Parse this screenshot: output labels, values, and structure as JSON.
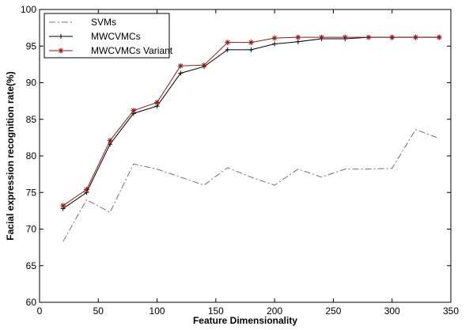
{
  "chart_data": {
    "type": "line",
    "title": "",
    "xlabel": "Feature Dimensionality",
    "ylabel": "Facial expression recognition rate(%)",
    "xlim": [
      0,
      350
    ],
    "ylim": [
      60,
      100
    ],
    "xticks": [
      0,
      50,
      100,
      150,
      200,
      250,
      300,
      350
    ],
    "yticks": [
      60,
      65,
      70,
      75,
      80,
      85,
      90,
      95,
      100
    ],
    "xtick_labels": [
      "0",
      "50",
      "100",
      "150",
      "200",
      "250",
      "300",
      "350"
    ],
    "ytick_labels": [
      "60",
      "65",
      "70",
      "75",
      "80",
      "85",
      "90",
      "95",
      "100"
    ],
    "grid": false,
    "legend_position": "top-left",
    "x": [
      20,
      40,
      60,
      80,
      100,
      120,
      140,
      160,
      180,
      200,
      220,
      240,
      260,
      280,
      300,
      320,
      340
    ],
    "series": [
      {
        "name": "SVMs",
        "style": "dash-dot",
        "marker": "none",
        "color": "#707070",
        "values": [
          68.3,
          74.0,
          72.3,
          78.9,
          78.2,
          77.1,
          76.0,
          78.4,
          77.1,
          76.0,
          78.2,
          77.1,
          78.2,
          78.2,
          78.3,
          83.6,
          82.4
        ]
      },
      {
        "name": "MWCVMCs",
        "style": "solid",
        "marker": "plus",
        "color": "#000000",
        "values": [
          72.8,
          75.0,
          81.6,
          85.8,
          86.8,
          91.3,
          92.2,
          94.5,
          94.5,
          95.3,
          95.6,
          96.0,
          96.0,
          96.2,
          96.2,
          96.2,
          96.2
        ]
      },
      {
        "name": "MWCVMCs Variant",
        "style": "solid",
        "marker": "star",
        "color": "#8b1a1a",
        "values": [
          73.2,
          75.4,
          82.1,
          86.2,
          87.3,
          92.3,
          92.4,
          95.5,
          95.5,
          96.1,
          96.2,
          96.2,
          96.2,
          96.2,
          96.2,
          96.2,
          96.2
        ]
      }
    ]
  }
}
